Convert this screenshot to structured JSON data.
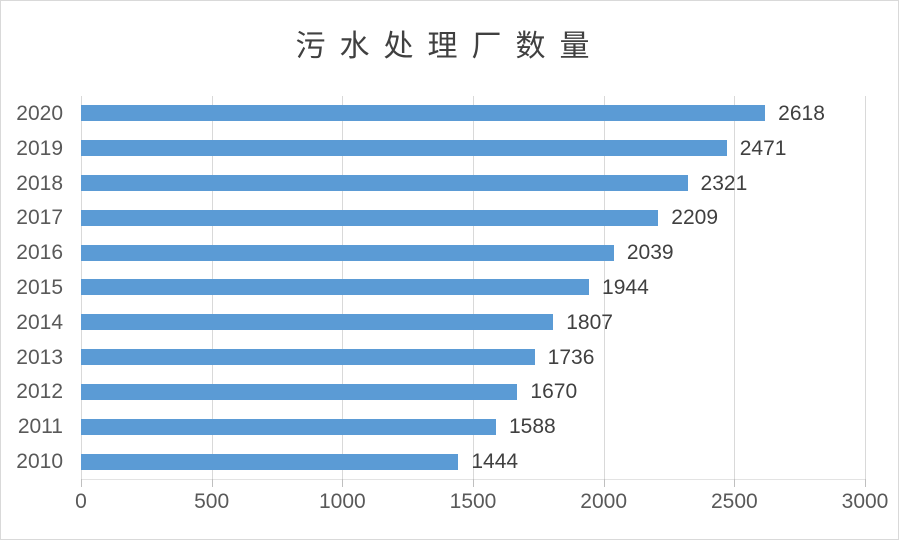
{
  "page": {
    "background": "#ffffff",
    "frame_border_color": "#d9d9d9"
  },
  "chart_data": {
    "type": "bar",
    "orientation": "horizontal",
    "title": "污水处理厂数量",
    "categories": [
      "2020",
      "2019",
      "2018",
      "2017",
      "2016",
      "2015",
      "2014",
      "2013",
      "2012",
      "2011",
      "2010"
    ],
    "values": [
      2618,
      2471,
      2321,
      2209,
      2039,
      1944,
      1807,
      1736,
      1670,
      1588,
      1444
    ],
    "xlabel": "",
    "ylabel": "",
    "xlim": [
      0,
      3000
    ],
    "xticks": [
      0,
      500,
      1000,
      1500,
      2000,
      2500,
      3000
    ],
    "grid": "vertical-only",
    "legend": "none",
    "data_labels": "outside-end",
    "bar_color": "#5b9bd5",
    "gridline_color": "#d9d9d9",
    "tick_mark_color": "#bfbfbf",
    "axis_label_color": "#595959",
    "value_label_color": "#404040",
    "title_color": "#404040"
  }
}
